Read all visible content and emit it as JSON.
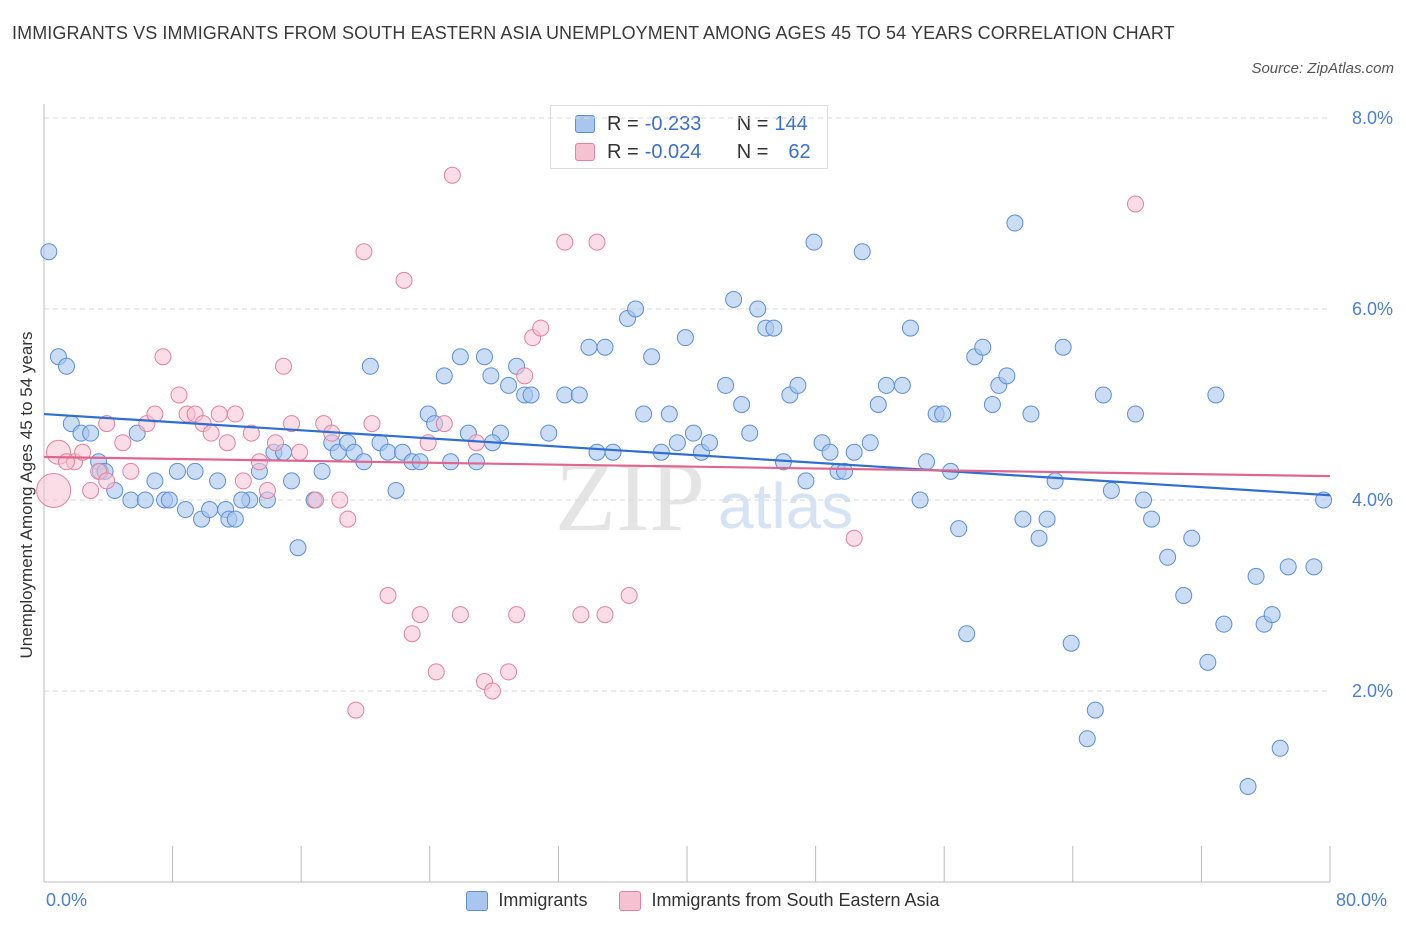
{
  "title": "IMMIGRANTS VS IMMIGRANTS FROM SOUTH EASTERN ASIA UNEMPLOYMENT AMONG AGES 45 TO 54 YEARS CORRELATION CHART",
  "source": "Source: ZipAtlas.com",
  "colors": {
    "blue_fill": "#a9c6ee",
    "blue_stroke": "#5b8fd6",
    "blue_line": "#2f6fd0",
    "pink_fill": "#f6c1d1",
    "pink_stroke": "#e4819f",
    "pink_line": "#e0668f",
    "axis_text": "#4a7fd4"
  },
  "legend_top": {
    "rows": [
      {
        "r_label": "R =",
        "r_value": "-0.233",
        "n_label": "N =",
        "n_value": "144"
      },
      {
        "r_label": "R =",
        "r_value": "-0.024",
        "n_label": "N =",
        "n_value": "62"
      }
    ]
  },
  "legend_bottom": [
    "Immigrants",
    "Immigrants from South Eastern Asia"
  ],
  "watermark": {
    "zip": "ZIP",
    "atlas": "atlas"
  },
  "chart_data": {
    "type": "scatter",
    "title": "IMMIGRANTS VS IMMIGRANTS FROM SOUTH EASTERN ASIA UNEMPLOYMENT AMONG AGES 45 TO 54 YEARS CORRELATION CHART",
    "xlabel": "",
    "ylabel": "Unemployment Among Ages 45 to 54 years",
    "xlim": [
      0,
      80
    ],
    "ylim": [
      0,
      8
    ],
    "x_tick_labels": [
      "0.0%",
      "80.0%"
    ],
    "y_tick_labels": [
      "2.0%",
      "4.0%",
      "6.0%",
      "8.0%"
    ],
    "y_ticks": [
      2,
      4,
      6,
      8
    ],
    "grid": "horizontal dashed",
    "legend": "top-center",
    "series": [
      {
        "name": "Immigrants",
        "color": "blue",
        "trend": [
          [
            0,
            4.9
          ],
          [
            80,
            4.05
          ]
        ],
        "points": [
          [
            0.3,
            6.6
          ],
          [
            0.9,
            5.5
          ],
          [
            1.4,
            5.4
          ],
          [
            1.7,
            4.8
          ],
          [
            2.3,
            4.7
          ],
          [
            2.9,
            4.7
          ],
          [
            3.4,
            4.4
          ],
          [
            3.5,
            4.3
          ],
          [
            3.8,
            4.3
          ],
          [
            4.4,
            4.1
          ],
          [
            5.4,
            4.0
          ],
          [
            5.8,
            4.7
          ],
          [
            6.3,
            4.0
          ],
          [
            6.9,
            4.2
          ],
          [
            7.5,
            4.0
          ],
          [
            7.8,
            4.0
          ],
          [
            8.3,
            4.3
          ],
          [
            8.8,
            3.9
          ],
          [
            9.4,
            4.3
          ],
          [
            9.8,
            3.8
          ],
          [
            10.3,
            3.9
          ],
          [
            10.8,
            4.2
          ],
          [
            11.3,
            3.9
          ],
          [
            11.5,
            3.8
          ],
          [
            11.9,
            3.8
          ],
          [
            12.8,
            4.0
          ],
          [
            13.4,
            4.3
          ],
          [
            13.9,
            4.0
          ],
          [
            14.3,
            4.5
          ],
          [
            14.9,
            4.5
          ],
          [
            15.4,
            4.2
          ],
          [
            15.8,
            3.5
          ],
          [
            16.8,
            4.0
          ],
          [
            17.3,
            4.3
          ],
          [
            17.9,
            4.6
          ],
          [
            18.3,
            4.5
          ],
          [
            18.9,
            4.6
          ],
          [
            19.3,
            4.5
          ],
          [
            19.9,
            4.4
          ],
          [
            20.3,
            5.4
          ],
          [
            20.9,
            4.6
          ],
          [
            21.4,
            4.5
          ],
          [
            21.9,
            4.1
          ],
          [
            22.3,
            4.5
          ],
          [
            22.9,
            4.4
          ],
          [
            23.4,
            4.4
          ],
          [
            23.9,
            4.9
          ],
          [
            24.3,
            4.8
          ],
          [
            24.9,
            5.3
          ],
          [
            25.3,
            4.4
          ],
          [
            25.9,
            5.5
          ],
          [
            26.4,
            4.7
          ],
          [
            26.9,
            4.4
          ],
          [
            27.4,
            5.5
          ],
          [
            27.8,
            5.3
          ],
          [
            28.4,
            4.7
          ],
          [
            28.9,
            5.2
          ],
          [
            29.4,
            5.4
          ],
          [
            29.9,
            5.1
          ],
          [
            30.3,
            5.1
          ],
          [
            31.4,
            4.7
          ],
          [
            32.4,
            5.1
          ],
          [
            33.3,
            5.1
          ],
          [
            33.9,
            5.6
          ],
          [
            34.9,
            5.6
          ],
          [
            35.4,
            4.5
          ],
          [
            36.3,
            5.9
          ],
          [
            36.8,
            6.0
          ],
          [
            37.3,
            4.9
          ],
          [
            37.8,
            5.5
          ],
          [
            38.4,
            4.5
          ],
          [
            38.9,
            4.9
          ],
          [
            39.4,
            4.6
          ],
          [
            39.9,
            5.7
          ],
          [
            40.4,
            4.7
          ],
          [
            40.9,
            4.5
          ],
          [
            41.4,
            4.6
          ],
          [
            42.4,
            5.2
          ],
          [
            42.9,
            6.1
          ],
          [
            43.4,
            5.0
          ],
          [
            43.9,
            4.7
          ],
          [
            44.4,
            6.0
          ],
          [
            44.9,
            5.8
          ],
          [
            45.4,
            5.8
          ],
          [
            46.4,
            5.1
          ],
          [
            46.9,
            5.2
          ],
          [
            47.4,
            4.2
          ],
          [
            47.9,
            6.7
          ],
          [
            48.4,
            4.6
          ],
          [
            48.9,
            4.5
          ],
          [
            49.4,
            4.3
          ],
          [
            49.8,
            4.3
          ],
          [
            50.4,
            4.5
          ],
          [
            50.9,
            6.6
          ],
          [
            51.4,
            4.6
          ],
          [
            51.9,
            5.0
          ],
          [
            52.4,
            5.2
          ],
          [
            53.4,
            5.2
          ],
          [
            53.9,
            5.8
          ],
          [
            54.5,
            4.0
          ],
          [
            54.9,
            4.4
          ],
          [
            55.5,
            4.9
          ],
          [
            55.9,
            4.9
          ],
          [
            56.4,
            4.3
          ],
          [
            56.9,
            3.7
          ],
          [
            57.4,
            2.6
          ],
          [
            57.9,
            5.5
          ],
          [
            58.4,
            5.6
          ],
          [
            59.0,
            5.0
          ],
          [
            59.4,
            5.2
          ],
          [
            59.9,
            5.3
          ],
          [
            60.4,
            6.9
          ],
          [
            60.9,
            3.8
          ],
          [
            61.4,
            4.9
          ],
          [
            61.9,
            3.6
          ],
          [
            62.4,
            3.8
          ],
          [
            62.9,
            4.2
          ],
          [
            63.4,
            5.6
          ],
          [
            63.9,
            2.5
          ],
          [
            64.9,
            1.5
          ],
          [
            65.4,
            1.8
          ],
          [
            65.9,
            5.1
          ],
          [
            66.4,
            4.1
          ],
          [
            67.9,
            4.9
          ],
          [
            68.4,
            4.0
          ],
          [
            68.9,
            3.8
          ],
          [
            69.9,
            3.4
          ],
          [
            70.9,
            3.0
          ],
          [
            71.4,
            3.6
          ],
          [
            72.4,
            2.3
          ],
          [
            72.9,
            5.1
          ],
          [
            73.4,
            2.7
          ],
          [
            74.9,
            1.0
          ],
          [
            75.4,
            3.2
          ],
          [
            75.9,
            2.7
          ],
          [
            76.4,
            2.8
          ],
          [
            76.9,
            1.4
          ],
          [
            77.4,
            3.3
          ],
          [
            79.0,
            3.3
          ],
          [
            79.6,
            4.0
          ],
          [
            12.3,
            4.0
          ],
          [
            27.9,
            4.6
          ],
          [
            34.4,
            4.5
          ],
          [
            46.0,
            4.4
          ]
        ]
      },
      {
        "name": "Immigrants from South Eastern Asia",
        "color": "pink",
        "trend": [
          [
            0,
            4.45
          ],
          [
            80,
            4.25
          ]
        ],
        "points": [
          [
            0.6,
            4.1
          ],
          [
            0.9,
            4.5
          ],
          [
            1.9,
            4.4
          ],
          [
            2.4,
            4.5
          ],
          [
            2.9,
            4.1
          ],
          [
            3.4,
            4.3
          ],
          [
            3.9,
            4.8
          ],
          [
            4.9,
            4.6
          ],
          [
            5.4,
            4.3
          ],
          [
            6.4,
            4.8
          ],
          [
            6.9,
            4.9
          ],
          [
            7.4,
            5.5
          ],
          [
            8.4,
            5.1
          ],
          [
            8.9,
            4.9
          ],
          [
            9.4,
            4.9
          ],
          [
            9.9,
            4.8
          ],
          [
            10.4,
            4.7
          ],
          [
            10.9,
            4.9
          ],
          [
            11.4,
            4.6
          ],
          [
            11.9,
            4.9
          ],
          [
            12.4,
            4.2
          ],
          [
            12.9,
            4.7
          ],
          [
            13.4,
            4.4
          ],
          [
            13.9,
            4.1
          ],
          [
            14.4,
            4.6
          ],
          [
            14.9,
            5.4
          ],
          [
            15.4,
            4.8
          ],
          [
            15.9,
            4.5
          ],
          [
            16.9,
            4.0
          ],
          [
            17.4,
            4.8
          ],
          [
            17.9,
            4.7
          ],
          [
            18.4,
            4.0
          ],
          [
            18.9,
            3.8
          ],
          [
            19.4,
            1.8
          ],
          [
            19.9,
            6.6
          ],
          [
            20.4,
            4.8
          ],
          [
            21.4,
            3.0
          ],
          [
            22.4,
            6.3
          ],
          [
            22.9,
            2.6
          ],
          [
            23.4,
            2.8
          ],
          [
            23.9,
            4.6
          ],
          [
            24.4,
            2.2
          ],
          [
            24.9,
            4.8
          ],
          [
            25.4,
            7.4
          ],
          [
            25.9,
            2.8
          ],
          [
            26.9,
            4.6
          ],
          [
            27.4,
            2.1
          ],
          [
            27.9,
            2.0
          ],
          [
            28.9,
            2.2
          ],
          [
            29.4,
            2.8
          ],
          [
            29.9,
            5.3
          ],
          [
            30.4,
            5.7
          ],
          [
            30.9,
            5.8
          ],
          [
            32.4,
            6.7
          ],
          [
            33.4,
            2.8
          ],
          [
            34.4,
            6.7
          ],
          [
            34.9,
            2.8
          ],
          [
            36.4,
            3.0
          ],
          [
            50.4,
            3.6
          ],
          [
            67.9,
            7.1
          ],
          [
            1.4,
            4.4
          ],
          [
            3.9,
            4.2
          ]
        ]
      }
    ]
  }
}
